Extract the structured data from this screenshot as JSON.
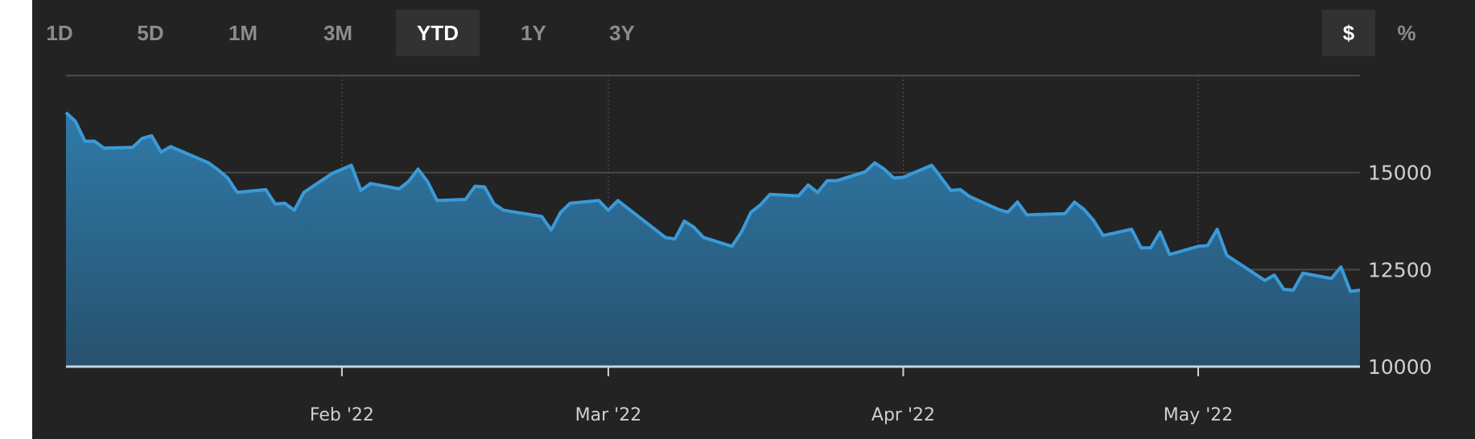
{
  "range_buttons": [
    {
      "label": "1D",
      "active": false
    },
    {
      "label": "5D",
      "active": false
    },
    {
      "label": "1M",
      "active": false
    },
    {
      "label": "3M",
      "active": false
    },
    {
      "label": "YTD",
      "active": true
    },
    {
      "label": "1Y",
      "active": false
    },
    {
      "label": "3Y",
      "active": false
    }
  ],
  "unit_buttons": [
    {
      "label": "$",
      "active": true
    },
    {
      "label": "%",
      "active": false
    }
  ],
  "colors": {
    "line": "#3a9ad9",
    "fill_top": "#2f7aa8",
    "fill_bottom": "#27516e",
    "background": "#232323",
    "grid": "#4a4a4a"
  },
  "chart_data": {
    "type": "area",
    "title": "",
    "xlabel": "",
    "ylabel": "",
    "ylim": [
      10000,
      17500
    ],
    "y_ticks": [
      {
        "value": 10000,
        "label": "10000"
      },
      {
        "value": 12500,
        "label": "12500"
      },
      {
        "value": 15000,
        "label": "15000"
      },
      {
        "value": 17500,
        "label": ""
      }
    ],
    "x_ticks": [
      {
        "date": "2022-02-01",
        "label": "Feb '22"
      },
      {
        "date": "2022-03-01",
        "label": "Mar '22"
      },
      {
        "date": "2022-04-01",
        "label": "Apr '22"
      },
      {
        "date": "2022-05-02",
        "label": "May '22"
      }
    ],
    "xlim": [
      "2022-01-03",
      "2022-05-19"
    ],
    "grid": true,
    "legend": "none",
    "series": [
      {
        "points": [
          [
            "2022-01-03",
            16550
          ],
          [
            "2022-01-04",
            16320
          ],
          [
            "2022-01-05",
            15810
          ],
          [
            "2022-01-06",
            15810
          ],
          [
            "2022-01-07",
            15630
          ],
          [
            "2022-01-10",
            15650
          ],
          [
            "2022-01-11",
            15880
          ],
          [
            "2022-01-12",
            15950
          ],
          [
            "2022-01-13",
            15530
          ],
          [
            "2022-01-14",
            15670
          ],
          [
            "2022-01-18",
            15250
          ],
          [
            "2022-01-19",
            15070
          ],
          [
            "2022-01-20",
            14860
          ],
          [
            "2022-01-21",
            14490
          ],
          [
            "2022-01-24",
            14560
          ],
          [
            "2022-01-25",
            14190
          ],
          [
            "2022-01-26",
            14210
          ],
          [
            "2022-01-27",
            14030
          ],
          [
            "2022-01-28",
            14490
          ],
          [
            "2022-01-31",
            14980
          ],
          [
            "2022-02-02",
            15190
          ],
          [
            "2022-02-03",
            14540
          ],
          [
            "2022-02-04",
            14720
          ],
          [
            "2022-02-07",
            14580
          ],
          [
            "2022-02-08",
            14770
          ],
          [
            "2022-02-09",
            15090
          ],
          [
            "2022-02-10",
            14770
          ],
          [
            "2022-02-11",
            14280
          ],
          [
            "2022-02-14",
            14310
          ],
          [
            "2022-02-15",
            14650
          ],
          [
            "2022-02-16",
            14630
          ],
          [
            "2022-02-17",
            14190
          ],
          [
            "2022-02-18",
            14030
          ],
          [
            "2022-02-22",
            13870
          ],
          [
            "2022-02-23",
            13520
          ],
          [
            "2022-02-24",
            13980
          ],
          [
            "2022-02-25",
            14210
          ],
          [
            "2022-02-28",
            14280
          ],
          [
            "2022-03-01",
            14030
          ],
          [
            "2022-03-02",
            14280
          ],
          [
            "2022-03-07",
            13330
          ],
          [
            "2022-03-08",
            13290
          ],
          [
            "2022-03-09",
            13750
          ],
          [
            "2022-03-10",
            13590
          ],
          [
            "2022-03-11",
            13330
          ],
          [
            "2022-03-14",
            13100
          ],
          [
            "2022-03-15",
            13470
          ],
          [
            "2022-03-16",
            13980
          ],
          [
            "2022-03-17",
            14170
          ],
          [
            "2022-03-18",
            14440
          ],
          [
            "2022-03-21",
            14400
          ],
          [
            "2022-03-22",
            14680
          ],
          [
            "2022-03-23",
            14490
          ],
          [
            "2022-03-24",
            14790
          ],
          [
            "2022-03-25",
            14790
          ],
          [
            "2022-03-28",
            15020
          ],
          [
            "2022-03-29",
            15250
          ],
          [
            "2022-03-30",
            15090
          ],
          [
            "2022-03-31",
            14860
          ],
          [
            "2022-04-01",
            14880
          ],
          [
            "2022-04-04",
            15190
          ],
          [
            "2022-04-06",
            14540
          ],
          [
            "2022-04-07",
            14560
          ],
          [
            "2022-04-08",
            14380
          ],
          [
            "2022-04-11",
            14050
          ],
          [
            "2022-04-12",
            13980
          ],
          [
            "2022-04-13",
            14240
          ],
          [
            "2022-04-14",
            13910
          ],
          [
            "2022-04-18",
            13940
          ],
          [
            "2022-04-19",
            14240
          ],
          [
            "2022-04-20",
            14050
          ],
          [
            "2022-04-21",
            13770
          ],
          [
            "2022-04-22",
            13380
          ],
          [
            "2022-04-25",
            13540
          ],
          [
            "2022-04-26",
            13060
          ],
          [
            "2022-04-27",
            13060
          ],
          [
            "2022-04-28",
            13470
          ],
          [
            "2022-04-29",
            12890
          ],
          [
            "2022-05-02",
            13100
          ],
          [
            "2022-05-03",
            13120
          ],
          [
            "2022-05-04",
            13540
          ],
          [
            "2022-05-05",
            12870
          ],
          [
            "2022-05-09",
            12220
          ],
          [
            "2022-05-10",
            12360
          ],
          [
            "2022-05-11",
            11990
          ],
          [
            "2022-05-12",
            11970
          ],
          [
            "2022-05-13",
            12410
          ],
          [
            "2022-05-16",
            12270
          ],
          [
            "2022-05-17",
            12570
          ],
          [
            "2022-05-18",
            11940
          ],
          [
            "2022-05-19",
            11970
          ]
        ]
      }
    ]
  }
}
